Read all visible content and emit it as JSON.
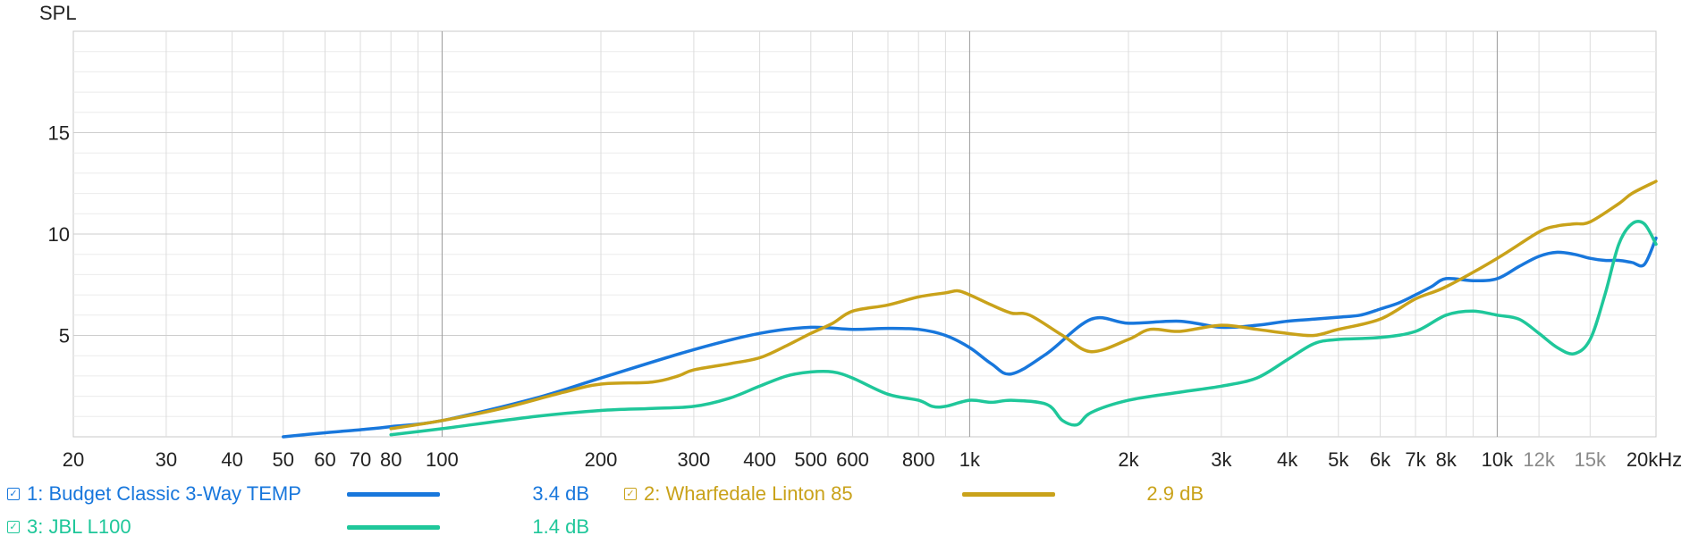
{
  "chart_data": {
    "type": "line",
    "ylabel": "SPL",
    "xscale": "log",
    "xlim": [
      20,
      20000
    ],
    "ylim": [
      0,
      20
    ],
    "x_ticks": [
      20,
      30,
      40,
      50,
      60,
      70,
      80,
      100,
      200,
      300,
      400,
      500,
      600,
      800,
      1000,
      2000,
      3000,
      4000,
      5000,
      6000,
      7000,
      8000,
      10000,
      12000,
      15000,
      20000
    ],
    "x_tick_labels": [
      "20",
      "30",
      "40",
      "50",
      "60",
      "70",
      "80",
      "100",
      "200",
      "300",
      "400",
      "500",
      "600",
      "800",
      "1k",
      "2k",
      "3k",
      "4k",
      "5k",
      "6k",
      "7k",
      "8k",
      "10k",
      "12k",
      "15k",
      "20kHz"
    ],
    "y_ticks": [
      5,
      10,
      15
    ],
    "y_tick_labels": [
      "5",
      "10",
      "15"
    ],
    "grid": true,
    "legend_position": "bottom",
    "series": [
      {
        "name": "1: Budget Classic 3-Way TEMP",
        "value_label": "3.4 dB",
        "color": "#1877dc",
        "x": [
          50,
          60,
          70,
          80,
          100,
          150,
          200,
          300,
          400,
          500,
          600,
          700,
          800,
          900,
          1000,
          1100,
          1200,
          1400,
          1700,
          2000,
          2500,
          3000,
          3500,
          4000,
          4500,
          5000,
          5500,
          6000,
          6500,
          7000,
          7500,
          8000,
          9000,
          10000,
          11000,
          12000,
          13000,
          14000,
          15000,
          16000,
          17000,
          18000,
          19000,
          20000
        ],
        "y": [
          0.0,
          0.2,
          0.35,
          0.5,
          0.8,
          1.9,
          2.9,
          4.3,
          5.1,
          5.4,
          5.3,
          5.35,
          5.3,
          5.0,
          4.4,
          3.6,
          3.1,
          4.1,
          5.8,
          5.6,
          5.7,
          5.4,
          5.5,
          5.7,
          5.8,
          5.9,
          6.0,
          6.3,
          6.6,
          7.0,
          7.4,
          7.8,
          7.7,
          7.8,
          8.4,
          8.9,
          9.1,
          9.0,
          8.8,
          8.7,
          8.7,
          8.6,
          8.5,
          9.8
        ]
      },
      {
        "name": "2: Wharfedale Linton 85",
        "value_label": "2.9 dB",
        "color": "#c9a21a",
        "x": [
          80,
          100,
          130,
          170,
          200,
          250,
          280,
          300,
          350,
          400,
          450,
          500,
          550,
          600,
          700,
          800,
          900,
          950,
          1000,
          1100,
          1200,
          1300,
          1500,
          1700,
          2000,
          2200,
          2500,
          3000,
          3500,
          4000,
          4500,
          5000,
          6000,
          7000,
          8000,
          10000,
          12000,
          13000,
          14000,
          15000,
          17000,
          18000,
          20000
        ],
        "y": [
          0.4,
          0.8,
          1.4,
          2.2,
          2.6,
          2.7,
          3.0,
          3.3,
          3.6,
          3.9,
          4.5,
          5.1,
          5.6,
          6.2,
          6.5,
          6.9,
          7.1,
          7.2,
          7.0,
          6.5,
          6.1,
          6.0,
          5.0,
          4.2,
          4.8,
          5.3,
          5.2,
          5.5,
          5.3,
          5.1,
          5.0,
          5.3,
          5.8,
          6.8,
          7.4,
          8.8,
          10.1,
          10.4,
          10.5,
          10.6,
          11.5,
          12.0,
          12.6
        ]
      },
      {
        "name": "3: JBL L100",
        "value_label": "1.4 dB",
        "color": "#1fc79a",
        "x": [
          80,
          100,
          150,
          200,
          250,
          300,
          350,
          400,
          450,
          500,
          550,
          600,
          700,
          800,
          850,
          900,
          1000,
          1100,
          1200,
          1400,
          1500,
          1600,
          1700,
          2000,
          2500,
          3000,
          3500,
          4000,
          4500,
          5000,
          6000,
          7000,
          8000,
          9000,
          10000,
          11000,
          12000,
          13000,
          14000,
          15000,
          16000,
          17000,
          18000,
          19000,
          20000
        ],
        "y": [
          0.1,
          0.4,
          1.0,
          1.3,
          1.4,
          1.5,
          1.9,
          2.5,
          3.0,
          3.2,
          3.2,
          2.9,
          2.1,
          1.8,
          1.5,
          1.5,
          1.8,
          1.7,
          1.8,
          1.6,
          0.8,
          0.6,
          1.2,
          1.8,
          2.2,
          2.5,
          2.9,
          3.8,
          4.6,
          4.8,
          4.9,
          5.2,
          6.0,
          6.2,
          6.0,
          5.8,
          5.1,
          4.4,
          4.1,
          4.8,
          7.0,
          9.5,
          10.5,
          10.5,
          9.5
        ]
      }
    ]
  }
}
